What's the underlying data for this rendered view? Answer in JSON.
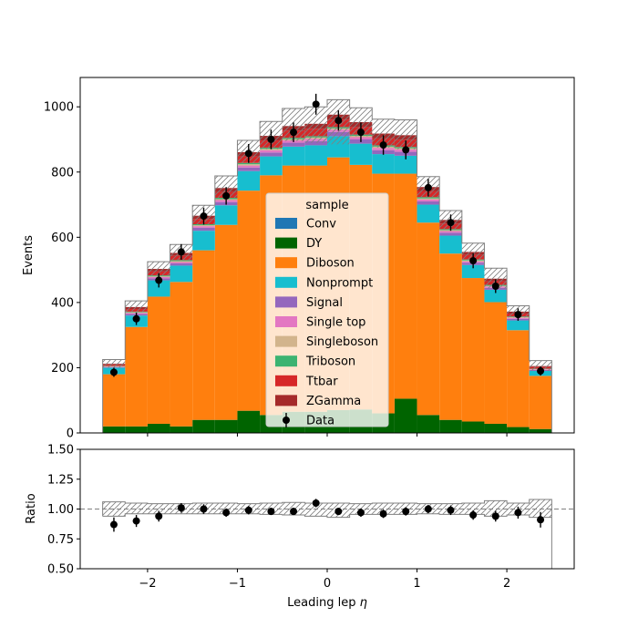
{
  "chart_data": [
    {
      "type": "bar",
      "stacked": true,
      "panel": "main",
      "ylabel": "Events",
      "ylim": [
        0,
        1090
      ],
      "y_ticks": [
        "0",
        "200",
        "400",
        "600",
        "800",
        "1000"
      ],
      "x_edges": [
        -2.5,
        -2.25,
        -2.0,
        -1.75,
        -1.5,
        -1.25,
        -1.0,
        -0.75,
        -0.5,
        -0.25,
        0.0,
        0.25,
        0.5,
        0.75,
        1.0,
        1.25,
        1.5,
        1.75,
        2.0,
        2.25,
        2.5
      ],
      "xlim": [
        -2.75,
        2.75
      ],
      "legend": {
        "title": "sample",
        "placement": "center"
      },
      "series": [
        {
          "name": "Conv",
          "color": "#1f77b4",
          "values": [
            0,
            0,
            0,
            0,
            0,
            0,
            0,
            0,
            0,
            0,
            0,
            0,
            0,
            0,
            0,
            0,
            0,
            0,
            0,
            0
          ]
        },
        {
          "name": "DY",
          "color": "#006400",
          "values": [
            20,
            20,
            28,
            20,
            40,
            40,
            68,
            55,
            65,
            65,
            70,
            72,
            60,
            105,
            55,
            40,
            35,
            28,
            18,
            12
          ]
        },
        {
          "name": "Diboson",
          "color": "#ff7f0e",
          "values": [
            160,
            305,
            390,
            443,
            520,
            598,
            675,
            735,
            755,
            755,
            775,
            750,
            735,
            690,
            590,
            510,
            440,
            373,
            297,
            163
          ]
        },
        {
          "name": "Nonprompt",
          "color": "#17becf",
          "values": [
            20,
            35,
            50,
            50,
            60,
            60,
            60,
            58,
            58,
            62,
            65,
            65,
            60,
            55,
            55,
            55,
            40,
            38,
            30,
            15
          ]
        },
        {
          "name": "Signal",
          "color": "#9467bd",
          "values": [
            2,
            5,
            6,
            7,
            9,
            10,
            11,
            12,
            12,
            13,
            13,
            13,
            12,
            12,
            10,
            9,
            7,
            6,
            5,
            3
          ]
        },
        {
          "name": "Single top",
          "color": "#e377c2",
          "values": [
            1,
            3,
            4,
            4,
            5,
            6,
            6,
            7,
            7,
            7,
            7,
            7,
            7,
            7,
            6,
            5,
            4,
            4,
            3,
            2
          ]
        },
        {
          "name": "Singleboson",
          "color": "#d2b48c",
          "values": [
            1,
            2,
            2,
            3,
            3,
            3,
            4,
            4,
            4,
            4,
            4,
            4,
            4,
            4,
            3,
            3,
            3,
            2,
            2,
            1
          ]
        },
        {
          "name": "Triboson",
          "color": "#3cb371",
          "values": [
            1,
            2,
            3,
            3,
            3,
            4,
            4,
            4,
            4,
            4,
            4,
            4,
            4,
            4,
            4,
            3,
            3,
            3,
            2,
            1
          ]
        },
        {
          "name": "Ttbar",
          "color": "#d62728",
          "values": [
            4,
            8,
            12,
            13,
            16,
            18,
            20,
            22,
            22,
            23,
            23,
            23,
            22,
            22,
            19,
            17,
            14,
            11,
            9,
            5
          ]
        },
        {
          "name": "ZGamma",
          "color": "#a52a2a",
          "values": [
            3,
            6,
            8,
            9,
            10,
            12,
            13,
            14,
            14,
            15,
            15,
            15,
            14,
            14,
            12,
            11,
            9,
            8,
            6,
            3
          ]
        }
      ],
      "uncertainty_total": {
        "values": [
          212,
          386,
          503,
          552,
          666,
          751,
          861,
          911,
          941,
          948,
          976,
          953,
          918,
          913,
          754,
          653,
          555,
          473,
          372,
          205
        ],
        "band_up": [
          225,
          405,
          525,
          578,
          698,
          788,
          897,
          955,
          995,
          1000,
          1022,
          997,
          962,
          960,
          786,
          682,
          582,
          505,
          390,
          222
        ],
        "band_down": [
          200,
          370,
          483,
          530,
          640,
          720,
          828,
          870,
          895,
          890,
          885,
          910,
          875,
          870,
          722,
          624,
          530,
          443,
          354,
          190
        ],
        "hatch_color": "#808080"
      },
      "data_series": {
        "name": "Data",
        "x": [
          -2.375,
          -2.125,
          -1.875,
          -1.625,
          -1.375,
          -1.125,
          -0.875,
          -0.625,
          -0.375,
          -0.125,
          0.125,
          0.375,
          0.625,
          0.875,
          1.125,
          1.375,
          1.625,
          1.875,
          2.125,
          2.375
        ],
        "y": [
          186,
          350,
          468,
          555,
          665,
          727,
          857,
          900,
          922,
          1008,
          958,
          922,
          883,
          868,
          752,
          645,
          528,
          450,
          363,
          190
        ],
        "yerr": [
          14,
          19,
          22,
          24,
          26,
          27,
          29,
          30,
          30,
          32,
          31,
          30,
          30,
          29,
          27,
          25,
          23,
          21,
          19,
          14
        ],
        "color": "#000000"
      }
    },
    {
      "type": "scatter",
      "panel": "ratio",
      "xlabel": "Leading lep η",
      "xlabel_parts": {
        "prefix": "Leading lep ",
        "symbol": "η"
      },
      "ylabel": "Ratio",
      "ylim": [
        0.5,
        1.5
      ],
      "y_ticks": [
        "0.50",
        "0.75",
        "1.00",
        "1.25",
        "1.50"
      ],
      "x_ticks": [
        "−2",
        "−1",
        "0",
        "1",
        "2"
      ],
      "x_tick_values": [
        -2,
        -1,
        0,
        1,
        2
      ],
      "reference_line": 1.0,
      "x": [
        -2.375,
        -2.125,
        -1.875,
        -1.625,
        -1.375,
        -1.125,
        -0.875,
        -0.625,
        -0.375,
        -0.125,
        0.125,
        0.375,
        0.625,
        0.875,
        1.125,
        1.375,
        1.625,
        1.875,
        2.125,
        2.375
      ],
      "y": [
        0.87,
        0.9,
        0.94,
        1.01,
        1.0,
        0.97,
        0.99,
        0.98,
        0.98,
        1.05,
        0.98,
        0.97,
        0.96,
        0.98,
        1.0,
        0.99,
        0.95,
        0.94,
        0.97,
        0.91
      ],
      "yerr": [
        0.06,
        0.05,
        0.045,
        0.04,
        0.04,
        0.035,
        0.035,
        0.03,
        0.03,
        0.035,
        0.03,
        0.035,
        0.035,
        0.035,
        0.035,
        0.04,
        0.04,
        0.045,
        0.05,
        0.065
      ],
      "band_up": [
        1.06,
        1.05,
        1.045,
        1.045,
        1.05,
        1.05,
        1.045,
        1.05,
        1.055,
        1.05,
        1.05,
        1.045,
        1.05,
        1.05,
        1.045,
        1.045,
        1.05,
        1.07,
        1.05,
        1.08
      ],
      "band_down": [
        0.94,
        0.96,
        0.96,
        0.96,
        0.96,
        0.96,
        0.96,
        0.955,
        0.95,
        0.94,
        0.93,
        0.955,
        0.955,
        0.955,
        0.96,
        0.955,
        0.955,
        0.94,
        0.95,
        0.93
      ]
    }
  ]
}
